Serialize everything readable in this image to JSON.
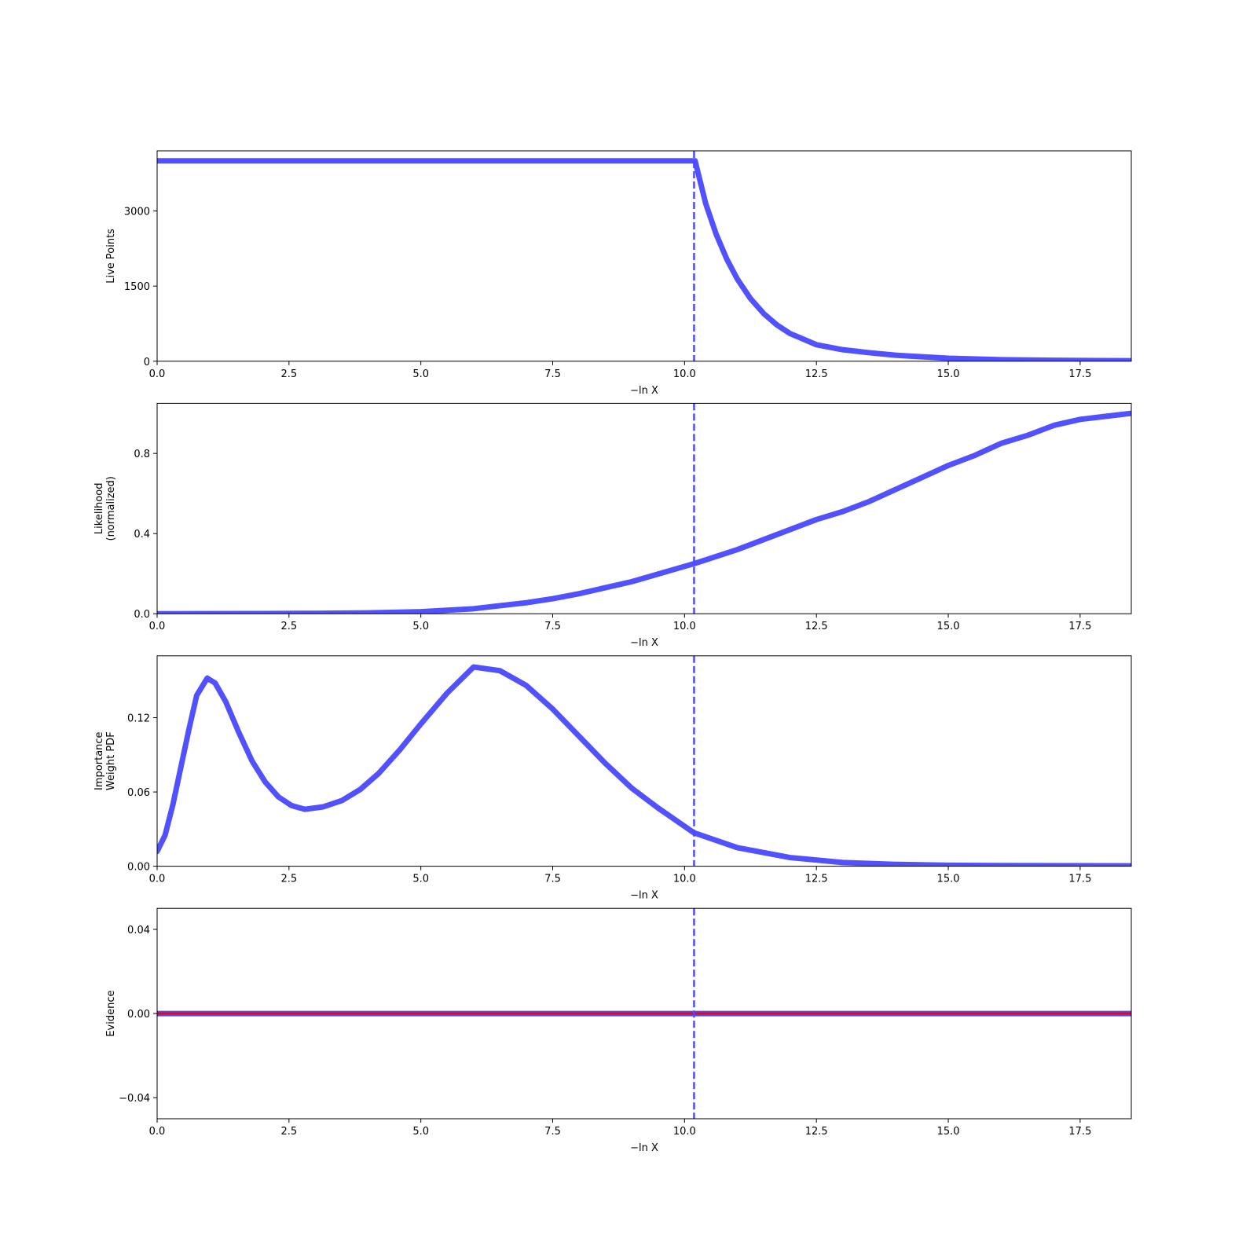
{
  "chart_data": [
    {
      "type": "line",
      "ylabel": [
        "Live Points"
      ],
      "xlabel": "−ln X",
      "color": "#4b4bff",
      "x": [
        0,
        10.18,
        10.2,
        10.4,
        10.6,
        10.8,
        11,
        11.25,
        11.5,
        11.75,
        12,
        12.5,
        13,
        13.5,
        14,
        15,
        16,
        17,
        18.47
      ],
      "values": [
        4000,
        4000,
        4000,
        3150,
        2533,
        2039,
        1641,
        1250,
        952,
        725,
        553,
        330,
        230,
        170,
        120,
        60,
        30,
        18,
        10
      ],
      "vline_x": 10.18,
      "xlim": [
        0,
        18.47
      ],
      "ylim": [
        0,
        4200
      ],
      "xticks": [
        {
          "value": 0,
          "label": "0.0"
        },
        2.5,
        {
          "value": 5,
          "label": "5.0"
        },
        7.5,
        {
          "value": 10,
          "label": "10.0"
        },
        12.5,
        {
          "value": 15,
          "label": "15.0"
        },
        17.5
      ],
      "yticks": [
        0,
        1500,
        3000
      ]
    },
    {
      "type": "line",
      "ylabel": [
        "Likelihood",
        "(normalized)"
      ],
      "xlabel": "−ln X",
      "color": "#4b4bff",
      "x": [
        0,
        2,
        3,
        4,
        5,
        6,
        7,
        7.5,
        8,
        9,
        10.18,
        11,
        12,
        12.5,
        13,
        13.5,
        14,
        14.5,
        15,
        15.5,
        16,
        16.5,
        17,
        17.5,
        18.47
      ],
      "values": [
        0,
        0.001,
        0.002,
        0.004,
        0.01,
        0.025,
        0.055,
        0.075,
        0.1,
        0.16,
        0.25,
        0.32,
        0.42,
        0.47,
        0.51,
        0.56,
        0.62,
        0.68,
        0.74,
        0.79,
        0.85,
        0.89,
        0.94,
        0.97,
        1.0
      ],
      "vline_x": 10.18,
      "xlim": [
        0,
        18.47
      ],
      "ylim": [
        0,
        1.05
      ],
      "xticks": [
        {
          "value": 0,
          "label": "0.0"
        },
        2.5,
        {
          "value": 5,
          "label": "5.0"
        },
        7.5,
        {
          "value": 10,
          "label": "10.0"
        },
        12.5,
        {
          "value": 15,
          "label": "15.0"
        },
        17.5
      ],
      "yticks": [
        {
          "value": 0,
          "label": "0.0"
        },
        0.4,
        0.8
      ]
    },
    {
      "type": "line",
      "ylabel": [
        "Importance",
        "Weight PDF"
      ],
      "xlabel": "−ln X",
      "color": "#4b4bff",
      "x": [
        0,
        0.15,
        0.3,
        0.45,
        0.6,
        0.75,
        0.95,
        1.1,
        1.3,
        1.55,
        1.8,
        2.05,
        2.3,
        2.55,
        2.8,
        3.15,
        3.5,
        3.85,
        4.2,
        4.6,
        5,
        5.5,
        6,
        6.5,
        7,
        7.5,
        8,
        8.5,
        9,
        9.5,
        10.18,
        11,
        12,
        13,
        14,
        15,
        16,
        18.47
      ],
      "values": [
        0.012,
        0.025,
        0.05,
        0.08,
        0.11,
        0.138,
        0.152,
        0.148,
        0.133,
        0.108,
        0.085,
        0.068,
        0.056,
        0.049,
        0.046,
        0.048,
        0.053,
        0.062,
        0.075,
        0.094,
        0.115,
        0.14,
        0.161,
        0.158,
        0.146,
        0.127,
        0.105,
        0.083,
        0.063,
        0.047,
        0.027,
        0.015,
        0.007,
        0.003,
        0.0015,
        0.0008,
        0.0005,
        0.0003
      ],
      "vline_x": 10.18,
      "xlim": [
        0,
        18.47
      ],
      "ylim": [
        0,
        0.17
      ],
      "xticks": [
        {
          "value": 0,
          "label": "0.0"
        },
        2.5,
        {
          "value": 5,
          "label": "5.0"
        },
        7.5,
        {
          "value": 10,
          "label": "10.0"
        },
        12.5,
        {
          "value": 15,
          "label": "15.0"
        },
        17.5
      ],
      "yticks": [
        {
          "value": 0,
          "label": "0.00"
        },
        0.06,
        0.12
      ]
    },
    {
      "type": "line",
      "ylabel": [
        "Evidence"
      ],
      "xlabel": "−ln X",
      "color": "#ff0000",
      "edgecolor": "#4b4bff",
      "x": [
        0,
        18.47
      ],
      "values": [
        0,
        0
      ],
      "vline_x": 10.18,
      "xlim": [
        0,
        18.47
      ],
      "ylim": [
        -0.05,
        0.05
      ],
      "xticks": [
        {
          "value": 0,
          "label": "0.0"
        },
        2.5,
        {
          "value": 5,
          "label": "5.0"
        },
        7.5,
        {
          "value": 10,
          "label": "10.0"
        },
        12.5,
        {
          "value": 15,
          "label": "15.0"
        },
        17.5
      ],
      "yticks": [
        {
          "value": -0.04,
          "label": "−0.04"
        },
        {
          "value": 0,
          "label": "0.00"
        },
        0.04
      ]
    }
  ]
}
